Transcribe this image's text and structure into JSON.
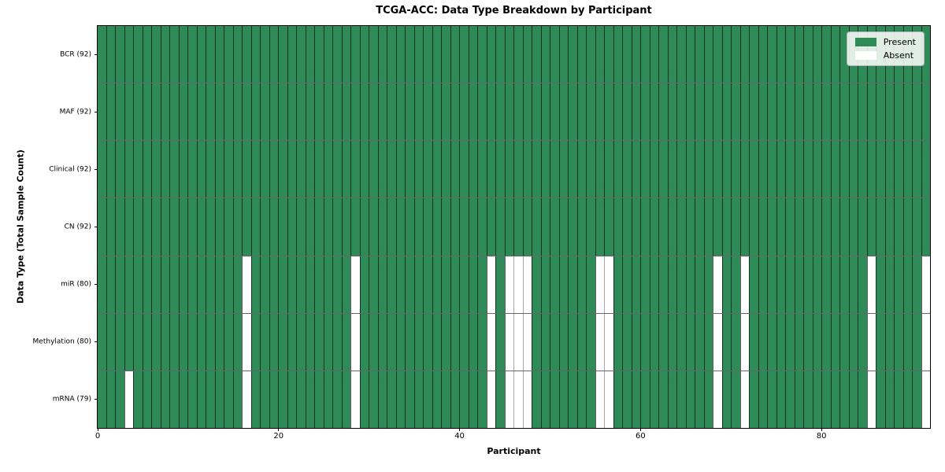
{
  "chart_data": {
    "type": "heatmap",
    "title": "TCGA-ACC: Data Type Breakdown by Participant",
    "xlabel": "Participant",
    "ylabel": "Data Type (Total Sample Count)",
    "x_ticks": [
      0,
      20,
      40,
      60,
      80
    ],
    "xlim": [
      0,
      92
    ],
    "n_participants": 92,
    "grid_on": false,
    "legend_position": "upper right",
    "legend_entries": [
      {
        "label": "Present",
        "color": "#2e8b57"
      },
      {
        "label": "Absent",
        "color": "#ffffff"
      }
    ],
    "rows": [
      {
        "label": "BCR (92)",
        "data_type": "BCR",
        "present_count": 92,
        "absent_participants": []
      },
      {
        "label": "MAF (92)",
        "data_type": "MAF",
        "present_count": 92,
        "absent_participants": []
      },
      {
        "label": "Clinical (92)",
        "data_type": "Clinical",
        "present_count": 92,
        "absent_participants": []
      },
      {
        "label": "CN (92)",
        "data_type": "CN",
        "present_count": 92,
        "absent_participants": []
      },
      {
        "label": "miR (80)",
        "data_type": "miR",
        "present_count": 80,
        "absent_participants": [
          16,
          28,
          43,
          45,
          46,
          47,
          55,
          56,
          68,
          71,
          85,
          91
        ]
      },
      {
        "label": "Methylation (80)",
        "data_type": "Methylation",
        "present_count": 80,
        "absent_participants": [
          16,
          28,
          43,
          45,
          46,
          47,
          55,
          56,
          68,
          71,
          85,
          91
        ]
      },
      {
        "label": "mRNA (79)",
        "data_type": "mRNA",
        "present_count": 79,
        "absent_participants": [
          3,
          16,
          28,
          43,
          45,
          46,
          47,
          55,
          56,
          68,
          71,
          85,
          91
        ]
      }
    ],
    "colors": {
      "present": "#2e8b57",
      "absent": "#ffffff"
    }
  }
}
